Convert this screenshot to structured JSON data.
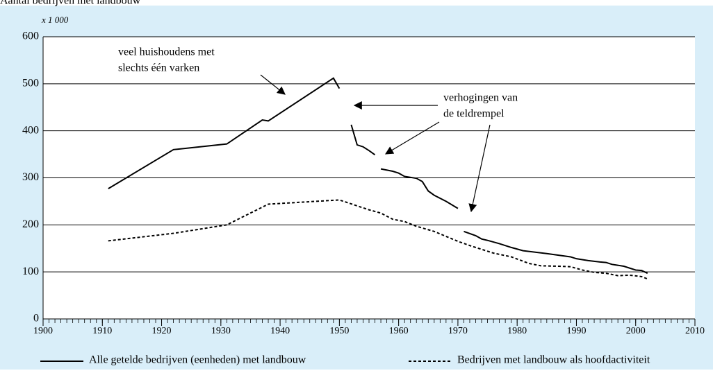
{
  "chart_data": {
    "type": "line",
    "title": "Aantal bedrijven met landbouw",
    "ylabel": "x 1 000",
    "xlim": [
      1900,
      2010
    ],
    "xticks": [
      1900,
      1910,
      1920,
      1930,
      1940,
      1950,
      1960,
      1970,
      1980,
      1990,
      2000,
      2010
    ],
    "ylim": [
      0,
      600
    ],
    "yticks": [
      0,
      100,
      200,
      300,
      400,
      500,
      600
    ],
    "grid": true,
    "legend": "bottom",
    "annotations": [
      "veel huishoudens met",
      "slechts één varken",
      "verhogingen van",
      "de teldrempel"
    ],
    "series": [
      {
        "name": "Alle getelde bedrijven (eenheden) met landbouw",
        "color": "#000000",
        "dash": "solid",
        "x": [
          1911,
          1922,
          1931,
          1937,
          1938,
          1949,
          1950,
          null,
          1952,
          1953,
          1954,
          1955,
          1956,
          null,
          1957,
          1959,
          1960,
          1961,
          1963,
          1964,
          1965,
          1966,
          1968,
          1970,
          null,
          1971,
          1973,
          1974,
          1975,
          1977,
          1979,
          1981,
          1985,
          1989,
          1990,
          1992,
          1994,
          1995,
          1996,
          1998,
          2000,
          2001,
          2002
        ],
        "values": [
          277,
          360,
          372,
          423,
          421,
          512,
          490,
          null,
          413,
          370,
          366,
          358,
          349,
          null,
          319,
          314,
          310,
          303,
          299,
          292,
          272,
          263,
          250,
          235,
          null,
          186,
          177,
          170,
          167,
          160,
          152,
          145,
          139,
          132,
          128,
          124,
          121,
          120,
          116,
          112,
          104,
          103,
          97
        ]
      },
      {
        "name": "Bedrijven met landbouw als hoofdactiviteit",
        "color": "#000000",
        "dash": "dashed",
        "x": [
          1911,
          1922,
          1931,
          1938,
          1950,
          1955,
          1957,
          1959,
          1961,
          1963,
          1966,
          1970,
          1972,
          1976,
          1979,
          1982,
          1984,
          1987,
          1989,
          1991,
          1993,
          1995,
          1997,
          1999,
          2001,
          2002
        ],
        "values": [
          166,
          182,
          200,
          244,
          253,
          232,
          225,
          212,
          207,
          197,
          186,
          165,
          156,
          140,
          132,
          118,
          113,
          112,
          111,
          104,
          99,
          97,
          92,
          93,
          90,
          85
        ]
      }
    ]
  }
}
